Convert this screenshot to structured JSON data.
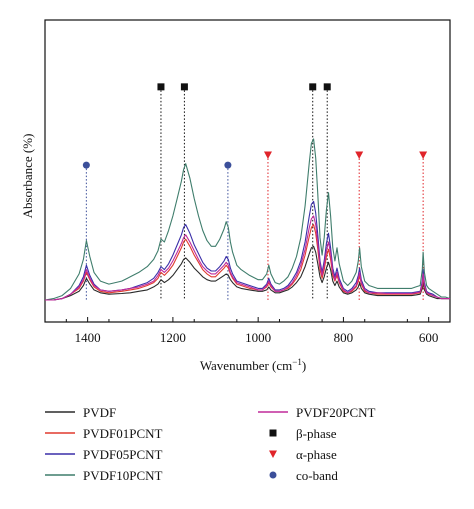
{
  "chart_data": {
    "type": "line",
    "xlabel": "Wavenumber (cm−1)",
    "ylabel": "Absorbance (%)",
    "xlim": [
      1500,
      550
    ],
    "x_reversed": true,
    "xticks": [
      1400,
      1200,
      1000,
      800,
      600
    ],
    "yticks_shown": false,
    "grid": false,
    "legend_position": "bottom",
    "series": [
      {
        "name": "PVDF",
        "color": "#2b2b2b",
        "x": [
          1500,
          1480,
          1460,
          1440,
          1420,
          1410,
          1403,
          1395,
          1385,
          1370,
          1350,
          1320,
          1300,
          1280,
          1260,
          1245,
          1235,
          1228,
          1220,
          1210,
          1200,
          1190,
          1180,
          1175,
          1170,
          1160,
          1150,
          1140,
          1130,
          1120,
          1110,
          1100,
          1090,
          1080,
          1075,
          1070,
          1065,
          1060,
          1050,
          1040,
          1020,
          1000,
          990,
          980,
          975,
          970,
          960,
          950,
          940,
          930,
          920,
          910,
          900,
          890,
          880,
          875,
          870,
          865,
          860,
          855,
          850,
          845,
          840,
          835,
          830,
          825,
          820,
          815,
          810,
          800,
          790,
          780,
          770,
          765,
          762,
          758,
          750,
          740,
          720,
          700,
          680,
          660,
          640,
          630,
          620,
          615,
          613,
          610,
          605,
          600,
          590,
          580,
          570,
          560,
          550
        ],
        "y": [
          0.0,
          0.0,
          0.01,
          0.03,
          0.06,
          0.1,
          0.15,
          0.11,
          0.07,
          0.05,
          0.04,
          0.045,
          0.05,
          0.06,
          0.07,
          0.09,
          0.11,
          0.14,
          0.12,
          0.14,
          0.17,
          0.21,
          0.25,
          0.28,
          0.29,
          0.26,
          0.22,
          0.19,
          0.16,
          0.14,
          0.13,
          0.13,
          0.15,
          0.17,
          0.18,
          0.17,
          0.14,
          0.12,
          0.09,
          0.08,
          0.07,
          0.06,
          0.06,
          0.07,
          0.09,
          0.07,
          0.05,
          0.05,
          0.06,
          0.07,
          0.09,
          0.12,
          0.16,
          0.23,
          0.32,
          0.36,
          0.37,
          0.33,
          0.25,
          0.16,
          0.12,
          0.16,
          0.22,
          0.26,
          0.21,
          0.13,
          0.1,
          0.13,
          0.09,
          0.05,
          0.04,
          0.05,
          0.07,
          0.09,
          0.12,
          0.08,
          0.05,
          0.04,
          0.03,
          0.03,
          0.03,
          0.03,
          0.03,
          0.035,
          0.04,
          0.08,
          0.12,
          0.07,
          0.04,
          0.03,
          0.02,
          0.01,
          0.01,
          0.01,
          0.01
        ]
      },
      {
        "name": "PVDF01PCNT",
        "color": "#e03a2e",
        "x": [
          1500,
          1480,
          1460,
          1440,
          1420,
          1410,
          1403,
          1395,
          1385,
          1370,
          1350,
          1320,
          1300,
          1280,
          1260,
          1245,
          1235,
          1228,
          1220,
          1210,
          1200,
          1190,
          1180,
          1175,
          1170,
          1160,
          1150,
          1140,
          1130,
          1120,
          1110,
          1100,
          1090,
          1080,
          1075,
          1070,
          1065,
          1060,
          1050,
          1040,
          1020,
          1000,
          990,
          980,
          975,
          970,
          960,
          950,
          940,
          930,
          920,
          910,
          900,
          890,
          880,
          875,
          870,
          865,
          860,
          855,
          850,
          845,
          840,
          835,
          830,
          825,
          820,
          815,
          810,
          800,
          790,
          780,
          770,
          765,
          762,
          758,
          750,
          740,
          720,
          700,
          680,
          660,
          640,
          630,
          620,
          615,
          613,
          610,
          605,
          600,
          590,
          580,
          570,
          560,
          550
        ],
        "y": [
          0.0,
          0.0,
          0.01,
          0.04,
          0.08,
          0.13,
          0.19,
          0.14,
          0.09,
          0.06,
          0.05,
          0.06,
          0.07,
          0.08,
          0.1,
          0.12,
          0.15,
          0.19,
          0.17,
          0.2,
          0.24,
          0.3,
          0.36,
          0.4,
          0.42,
          0.37,
          0.31,
          0.26,
          0.21,
          0.18,
          0.16,
          0.16,
          0.19,
          0.22,
          0.24,
          0.22,
          0.18,
          0.15,
          0.11,
          0.1,
          0.08,
          0.07,
          0.07,
          0.09,
          0.12,
          0.09,
          0.06,
          0.06,
          0.07,
          0.08,
          0.11,
          0.15,
          0.21,
          0.31,
          0.44,
          0.5,
          0.52,
          0.46,
          0.35,
          0.21,
          0.15,
          0.21,
          0.3,
          0.35,
          0.28,
          0.17,
          0.13,
          0.17,
          0.12,
          0.06,
          0.05,
          0.06,
          0.09,
          0.13,
          0.17,
          0.11,
          0.06,
          0.05,
          0.04,
          0.04,
          0.04,
          0.04,
          0.04,
          0.045,
          0.05,
          0.1,
          0.16,
          0.09,
          0.05,
          0.04,
          0.03,
          0.02,
          0.01,
          0.01,
          0.01
        ]
      },
      {
        "name": "PVDF05PCNT",
        "color": "#3a2fa8",
        "x": [
          1500,
          1480,
          1460,
          1440,
          1420,
          1410,
          1403,
          1395,
          1385,
          1370,
          1350,
          1320,
          1300,
          1280,
          1260,
          1245,
          1235,
          1228,
          1220,
          1210,
          1200,
          1190,
          1180,
          1175,
          1170,
          1160,
          1150,
          1140,
          1130,
          1120,
          1110,
          1100,
          1090,
          1080,
          1075,
          1070,
          1065,
          1060,
          1050,
          1040,
          1020,
          1000,
          990,
          980,
          975,
          970,
          960,
          950,
          940,
          930,
          920,
          910,
          900,
          890,
          880,
          875,
          870,
          865,
          860,
          855,
          850,
          845,
          840,
          835,
          830,
          825,
          820,
          815,
          810,
          800,
          790,
          780,
          770,
          765,
          762,
          758,
          750,
          740,
          720,
          700,
          680,
          660,
          640,
          630,
          620,
          615,
          613,
          610,
          605,
          600,
          590,
          580,
          570,
          560,
          550
        ],
        "y": [
          0.0,
          0.0,
          0.01,
          0.04,
          0.1,
          0.16,
          0.24,
          0.17,
          0.11,
          0.07,
          0.06,
          0.07,
          0.08,
          0.1,
          0.12,
          0.15,
          0.19,
          0.23,
          0.21,
          0.25,
          0.31,
          0.38,
          0.45,
          0.5,
          0.52,
          0.46,
          0.38,
          0.32,
          0.26,
          0.22,
          0.2,
          0.2,
          0.23,
          0.27,
          0.3,
          0.28,
          0.22,
          0.18,
          0.13,
          0.12,
          0.1,
          0.08,
          0.08,
          0.11,
          0.15,
          0.11,
          0.07,
          0.07,
          0.08,
          0.1,
          0.14,
          0.19,
          0.27,
          0.4,
          0.58,
          0.66,
          0.68,
          0.6,
          0.45,
          0.27,
          0.19,
          0.27,
          0.39,
          0.46,
          0.36,
          0.22,
          0.16,
          0.22,
          0.15,
          0.08,
          0.06,
          0.08,
          0.12,
          0.17,
          0.22,
          0.14,
          0.08,
          0.06,
          0.05,
          0.05,
          0.05,
          0.05,
          0.05,
          0.055,
          0.06,
          0.13,
          0.21,
          0.12,
          0.06,
          0.05,
          0.04,
          0.02,
          0.01,
          0.01,
          0.01
        ]
      },
      {
        "name": "PVDF10PCNT",
        "color": "#3f7d6c",
        "x": [
          1500,
          1480,
          1460,
          1440,
          1420,
          1410,
          1403,
          1395,
          1385,
          1370,
          1350,
          1320,
          1300,
          1280,
          1260,
          1245,
          1235,
          1228,
          1220,
          1210,
          1200,
          1190,
          1180,
          1175,
          1170,
          1160,
          1150,
          1140,
          1130,
          1120,
          1110,
          1100,
          1090,
          1080,
          1075,
          1070,
          1065,
          1060,
          1050,
          1040,
          1020,
          1000,
          990,
          980,
          975,
          970,
          960,
          950,
          940,
          930,
          920,
          910,
          900,
          890,
          880,
          875,
          870,
          865,
          860,
          855,
          850,
          845,
          840,
          835,
          830,
          825,
          820,
          815,
          810,
          800,
          790,
          780,
          770,
          765,
          762,
          758,
          750,
          740,
          720,
          700,
          680,
          660,
          640,
          630,
          620,
          615,
          613,
          610,
          605,
          600,
          590,
          580,
          570,
          560,
          550
        ],
        "y": [
          0.0,
          0.01,
          0.03,
          0.08,
          0.18,
          0.28,
          0.41,
          0.3,
          0.19,
          0.13,
          0.11,
          0.13,
          0.16,
          0.19,
          0.23,
          0.28,
          0.34,
          0.42,
          0.4,
          0.48,
          0.58,
          0.7,
          0.82,
          0.9,
          0.94,
          0.84,
          0.7,
          0.58,
          0.48,
          0.41,
          0.37,
          0.37,
          0.42,
          0.49,
          0.54,
          0.5,
          0.4,
          0.33,
          0.24,
          0.21,
          0.17,
          0.14,
          0.14,
          0.18,
          0.24,
          0.18,
          0.12,
          0.11,
          0.13,
          0.16,
          0.22,
          0.3,
          0.43,
          0.65,
          0.95,
          1.08,
          1.11,
          0.98,
          0.73,
          0.43,
          0.31,
          0.43,
          0.62,
          0.74,
          0.58,
          0.36,
          0.27,
          0.36,
          0.25,
          0.13,
          0.1,
          0.13,
          0.19,
          0.27,
          0.36,
          0.23,
          0.13,
          0.1,
          0.08,
          0.08,
          0.08,
          0.08,
          0.08,
          0.09,
          0.1,
          0.21,
          0.33,
          0.19,
          0.1,
          0.08,
          0.06,
          0.04,
          0.02,
          0.02,
          0.01
        ]
      },
      {
        "name": "PVDF20PCNT",
        "color": "#c02a9a",
        "x": [
          1500,
          1480,
          1460,
          1440,
          1420,
          1410,
          1403,
          1395,
          1385,
          1370,
          1350,
          1320,
          1300,
          1280,
          1260,
          1245,
          1235,
          1228,
          1220,
          1210,
          1200,
          1190,
          1180,
          1175,
          1170,
          1160,
          1150,
          1140,
          1130,
          1120,
          1110,
          1100,
          1090,
          1080,
          1075,
          1070,
          1065,
          1060,
          1050,
          1040,
          1020,
          1000,
          990,
          980,
          975,
          970,
          960,
          950,
          940,
          930,
          920,
          910,
          900,
          890,
          880,
          875,
          870,
          865,
          860,
          855,
          850,
          845,
          840,
          835,
          830,
          825,
          820,
          815,
          810,
          800,
          790,
          780,
          770,
          765,
          762,
          758,
          750,
          740,
          720,
          700,
          680,
          660,
          640,
          630,
          620,
          615,
          613,
          610,
          605,
          600,
          590,
          580,
          570,
          560,
          550
        ],
        "y": [
          0.0,
          0.0,
          0.01,
          0.04,
          0.09,
          0.14,
          0.21,
          0.15,
          0.1,
          0.07,
          0.06,
          0.07,
          0.08,
          0.09,
          0.11,
          0.13,
          0.17,
          0.21,
          0.19,
          0.22,
          0.27,
          0.33,
          0.39,
          0.43,
          0.45,
          0.4,
          0.34,
          0.28,
          0.23,
          0.2,
          0.18,
          0.18,
          0.21,
          0.24,
          0.26,
          0.24,
          0.19,
          0.16,
          0.12,
          0.11,
          0.09,
          0.07,
          0.07,
          0.1,
          0.13,
          0.1,
          0.06,
          0.06,
          0.07,
          0.09,
          0.12,
          0.17,
          0.24,
          0.35,
          0.5,
          0.56,
          0.58,
          0.52,
          0.39,
          0.24,
          0.17,
          0.24,
          0.34,
          0.4,
          0.32,
          0.19,
          0.14,
          0.19,
          0.13,
          0.07,
          0.05,
          0.07,
          0.1,
          0.15,
          0.19,
          0.12,
          0.07,
          0.05,
          0.05,
          0.045,
          0.045,
          0.045,
          0.045,
          0.05,
          0.055,
          0.11,
          0.18,
          0.1,
          0.05,
          0.045,
          0.03,
          0.02,
          0.01,
          0.01,
          0.01
        ]
      }
    ],
    "markers": [
      {
        "name": "β-phase",
        "symbol": "square",
        "color": "#111111",
        "lineColor": "#111111",
        "x": [
          1228,
          1173,
          872,
          838
        ]
      },
      {
        "name": "α-phase",
        "symbol": "triangle",
        "color": "#e0242a",
        "lineColor": "#e0242a",
        "x": [
          977,
          763,
          613
        ]
      },
      {
        "name": "co-band",
        "symbol": "circle",
        "color": "#3b4f9a",
        "lineColor": "#3b4f9a",
        "x": [
          1403,
          1071
        ]
      }
    ],
    "marker_levels": {
      "square": 1.47,
      "triangle": 1.0,
      "circle": 0.93
    }
  }
}
